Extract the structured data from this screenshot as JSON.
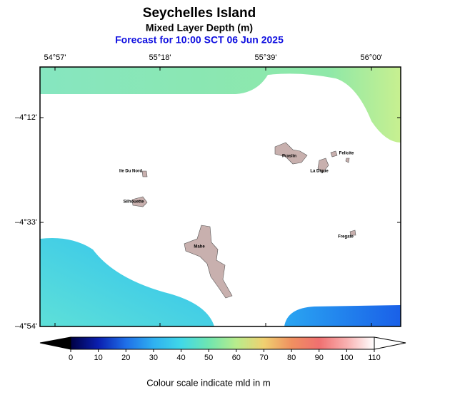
{
  "header": {
    "title": "Seychelles Island",
    "subtitle": "Mixed Layer Depth (m)",
    "forecast": "Forecast for  10:00 SCT 06 Jun 2025"
  },
  "map": {
    "lon_labels": [
      "54°57'",
      "55°18'",
      "55°39'",
      "56°00'"
    ],
    "lat_labels": [
      "–4°12'",
      "–4°33'",
      "–4°54'"
    ],
    "places": [
      "Ile Du Nord",
      "Silhouette",
      "Praslin",
      "Felicite",
      "La Digue",
      "Mahe",
      "Fregate"
    ]
  },
  "colorbar": {
    "lim": [
      0,
      110
    ],
    "ticks": [
      0,
      10,
      20,
      30,
      40,
      50,
      60,
      70,
      80,
      90,
      100,
      110
    ],
    "colors": [
      "#000044",
      "#0a1fb0",
      "#1f6fe8",
      "#2fb0f0",
      "#40d8e8",
      "#6fe6b0",
      "#b8ec8c",
      "#f0d070",
      "#f09060",
      "#f07070",
      "#f8b0b0",
      "#ffffff"
    ],
    "caption": "Colour scale indicate mld in m"
  }
}
